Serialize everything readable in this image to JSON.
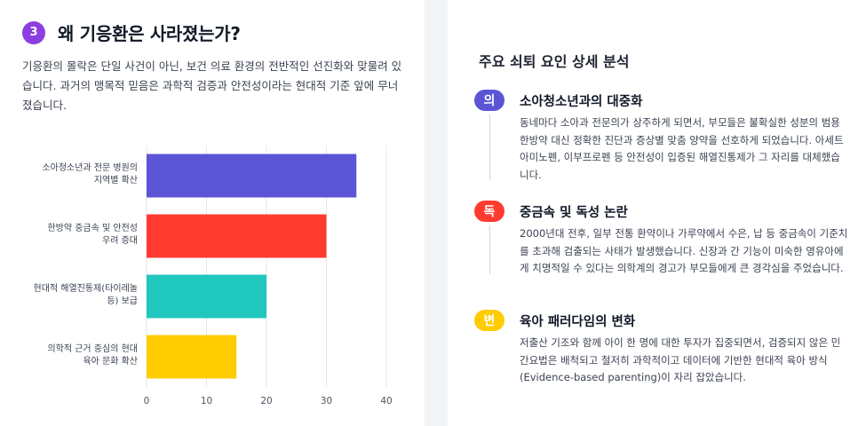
{
  "section": {
    "number": "3",
    "title": "왜 기응환은 사라졌는가?",
    "intro": "기응환의 몰락은 단일 사건이 아닌, 보건 의료 환경의 전반적인 선진화와 맞물려 있습니다. 과거의 맹목적 믿음은 과학적 검증과 안전성이라는 현대적 기준 앞에 무너졌습니다."
  },
  "chart_data": {
    "type": "bar",
    "orientation": "horizontal",
    "categories": [
      [
        "소아청소년과 전문 병원의",
        "지역별 확산"
      ],
      [
        "한방약 중금속 및 안전성",
        "우려 증대"
      ],
      [
        "현대적 해열진통제(타이레놀",
        "등) 보급"
      ],
      [
        "의학적 근거 중심의 현대",
        "육아 문화 확산"
      ]
    ],
    "values": [
      35,
      30,
      20,
      15
    ],
    "colors": [
      "#5b55d6",
      "#ff3b30",
      "#1fc7bd",
      "#ffcc00"
    ],
    "xlim": [
      0,
      40
    ],
    "xticks": [
      0,
      10,
      20,
      30,
      40
    ],
    "grid": true
  },
  "analysis": {
    "title": "주요 쇠퇴 요인 상세 분석",
    "factors": [
      {
        "badge": "의",
        "color": "#5b55d6",
        "title": "소아청소년과의 대중화",
        "text": "동네마다 소아과 전문의가 상주하게 되면서, 부모들은 불확실한 성분의 범용 한방약 대신 정확한 진단과 증상별 맞춤 양약을 선호하게 되었습니다. 아세트아미노펜, 이부프로펜 등 안전성이 입증된 해열진통제가 그 자리를 대체했습니다."
      },
      {
        "badge": "독",
        "color": "#ff3b30",
        "title": "중금속 및 독성 논란",
        "text": "2000년대 전후, 일부 전통 환약이나 가루약에서 수은, 납 등 중금속이 기준치를 초과해 검출되는 사태가 발생했습니다. 신장과 간 기능이 미숙한 영유아에게 치명적일 수 있다는 의학계의 경고가 부모들에게 큰 경각심을 주었습니다."
      },
      {
        "badge": "변",
        "color": "#ffcc00",
        "title": "육아 패러다임의 변화",
        "text": "저출산 기조와 함께 아이 한 명에 대한 투자가 집중되면서, 검증되지 않은 민간요법은 배척되고 철저히 과학적이고 데이터에 기반한 현대적 육아 방식(Evidence-based parenting)이 자리 잡았습니다."
      }
    ]
  }
}
